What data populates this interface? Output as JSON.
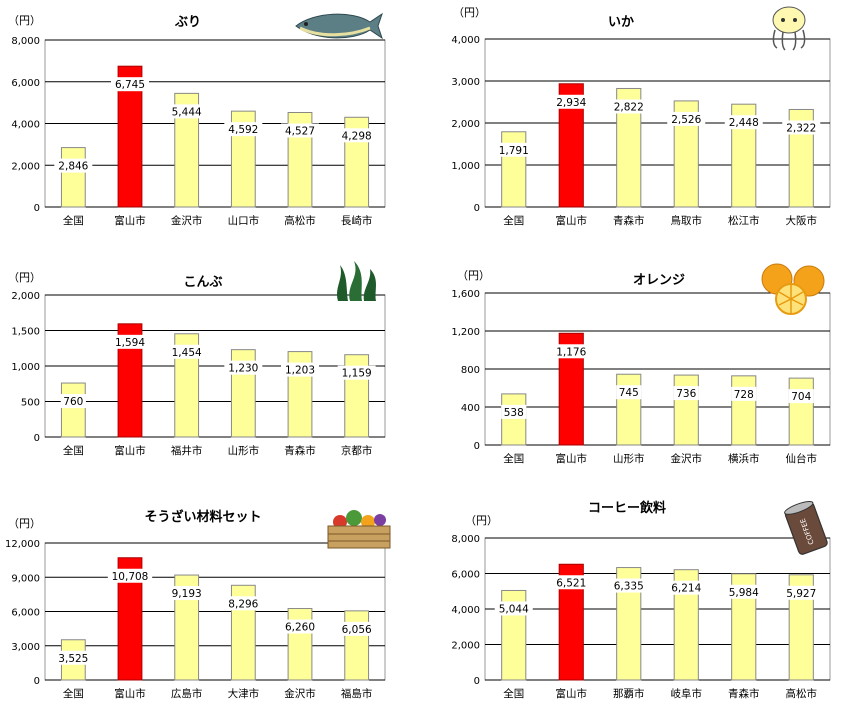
{
  "colors": {
    "highlight": "#ff0000",
    "normal": "#ffff99",
    "bar_stroke": "#888888",
    "grid": "#000000",
    "label_bg": "#ffffff"
  },
  "chart_data": [
    {
      "type": "bar",
      "title": "ぶり",
      "unit": "（円）",
      "icon": "fish-icon",
      "categories": [
        "全国",
        "富山市",
        "金沢市",
        "山口市",
        "高松市",
        "長崎市"
      ],
      "values": [
        2846,
        6745,
        5444,
        4592,
        4527,
        4298
      ],
      "value_labels": [
        "2,846",
        "6,745",
        "5,444",
        "4,592",
        "4,527",
        "4,298"
      ],
      "ylim": [
        0,
        8000
      ],
      "yticks": [
        0,
        2000,
        4000,
        6000,
        8000
      ],
      "ytick_labels": [
        "0",
        "2,000",
        "4,000",
        "6,000",
        "8,000"
      ],
      "highlight_index": 1,
      "grid": true
    },
    {
      "type": "bar",
      "title": "いか",
      "unit": "（円）",
      "icon": "squid-icon",
      "categories": [
        "全国",
        "富山市",
        "青森市",
        "鳥取市",
        "松江市",
        "大阪市"
      ],
      "values": [
        1791,
        2934,
        2822,
        2526,
        2448,
        2322
      ],
      "value_labels": [
        "1,791",
        "2,934",
        "2,822",
        "2,526",
        "2,448",
        "2,322"
      ],
      "ylim": [
        0,
        4000
      ],
      "yticks": [
        0,
        1000,
        2000,
        3000,
        4000
      ],
      "ytick_labels": [
        "0",
        "1,000",
        "2,000",
        "3,000",
        "4,000"
      ],
      "highlight_index": 1,
      "grid": true
    },
    {
      "type": "bar",
      "title": "こんぶ",
      "unit": "（円）",
      "icon": "seaweed-icon",
      "categories": [
        "全国",
        "富山市",
        "福井市",
        "山形市",
        "青森市",
        "京都市"
      ],
      "values": [
        760,
        1594,
        1454,
        1230,
        1203,
        1159
      ],
      "value_labels": [
        "760",
        "1,594",
        "1,454",
        "1,230",
        "1,203",
        "1,159"
      ],
      "ylim": [
        0,
        2000
      ],
      "yticks": [
        0,
        500,
        1000,
        1500,
        2000
      ],
      "ytick_labels": [
        "0",
        "500",
        "1,000",
        "1,500",
        "2,000"
      ],
      "highlight_index": 1,
      "grid": true
    },
    {
      "type": "bar",
      "title": "オレンジ",
      "unit": "（円）",
      "icon": "orange-icon",
      "categories": [
        "全国",
        "富山市",
        "山形市",
        "金沢市",
        "横浜市",
        "仙台市"
      ],
      "values": [
        538,
        1176,
        745,
        736,
        728,
        704
      ],
      "value_labels": [
        "538",
        "1,176",
        "745",
        "736",
        "728",
        "704"
      ],
      "ylim": [
        0,
        1600
      ],
      "yticks": [
        0,
        400,
        800,
        1200,
        1600
      ],
      "ytick_labels": [
        "0",
        "400",
        "800",
        "1,200",
        "1,600"
      ],
      "highlight_index": 1,
      "grid": true
    },
    {
      "type": "bar",
      "title": "そうざい材料セット",
      "unit": "（円）",
      "icon": "vegetable-basket-icon",
      "categories": [
        "全国",
        "富山市",
        "広島市",
        "大津市",
        "金沢市",
        "福島市"
      ],
      "values": [
        3525,
        10708,
        9193,
        8296,
        6260,
        6056
      ],
      "value_labels": [
        "3,525",
        "10,708",
        "9,193",
        "8,296",
        "6,260",
        "6,056"
      ],
      "ylim": [
        0,
        12000
      ],
      "yticks": [
        0,
        3000,
        6000,
        9000,
        12000
      ],
      "ytick_labels": [
        "0",
        "3,000",
        "6,000",
        "9,000",
        "12,000"
      ],
      "highlight_index": 1,
      "grid": true
    },
    {
      "type": "bar",
      "title": "コーヒー飲料",
      "unit": "（円）",
      "icon": "coffee-can-icon",
      "icon_text": "COFFEE",
      "categories": [
        "全国",
        "富山市",
        "那覇市",
        "岐阜市",
        "青森市",
        "高松市"
      ],
      "values": [
        5044,
        6521,
        6335,
        6214,
        5984,
        5927
      ],
      "value_labels": [
        "5,044",
        "6,521",
        "6,335",
        "6,214",
        "5,984",
        "5,927"
      ],
      "ylim": [
        0,
        8000
      ],
      "yticks": [
        0,
        2000,
        4000,
        6000,
        8000
      ],
      "ytick_labels": [
        "0",
        "2,000",
        "4,000",
        "6,000",
        "8,000"
      ],
      "highlight_index": 1,
      "grid": true
    }
  ]
}
